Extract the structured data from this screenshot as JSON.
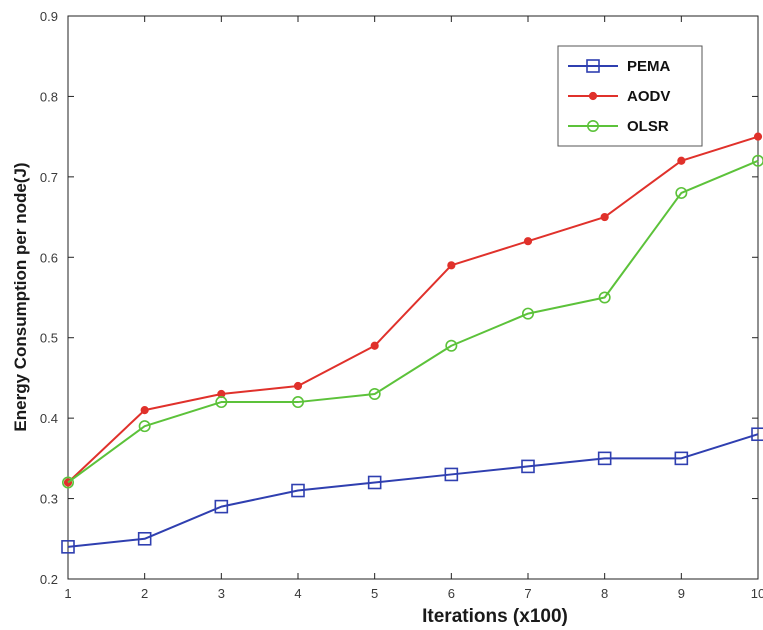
{
  "chart_data": {
    "type": "line",
    "title": "",
    "xlabel": "Iterations (x100)",
    "ylabel": "Energy Consumption per node(J)",
    "x": [
      1,
      2,
      3,
      4,
      5,
      6,
      7,
      8,
      9,
      10
    ],
    "xlim": [
      1,
      10
    ],
    "ylim": [
      0.2,
      0.9
    ],
    "x_ticks": [
      "1",
      "2",
      "3",
      "4",
      "5",
      "6",
      "7",
      "8",
      "9",
      "10"
    ],
    "y_ticks": [
      "0.2",
      "0.3",
      "0.4",
      "0.5",
      "0.6",
      "0.7",
      "0.8",
      "0.9"
    ],
    "grid": false,
    "legend_position": "top-right",
    "series": [
      {
        "name": "PEMA",
        "color": "#2f3fb0",
        "marker": "square",
        "values": [
          0.24,
          0.25,
          0.29,
          0.31,
          0.32,
          0.33,
          0.34,
          0.35,
          0.35,
          0.38
        ]
      },
      {
        "name": "AODV",
        "color": "#e0312b",
        "marker": "dot",
        "values": [
          0.32,
          0.41,
          0.43,
          0.44,
          0.49,
          0.59,
          0.62,
          0.65,
          0.72,
          0.75
        ]
      },
      {
        "name": "OLSR",
        "color": "#5cc23a",
        "marker": "circle",
        "values": [
          0.32,
          0.39,
          0.42,
          0.42,
          0.43,
          0.49,
          0.53,
          0.55,
          0.68,
          0.72
        ]
      }
    ]
  }
}
